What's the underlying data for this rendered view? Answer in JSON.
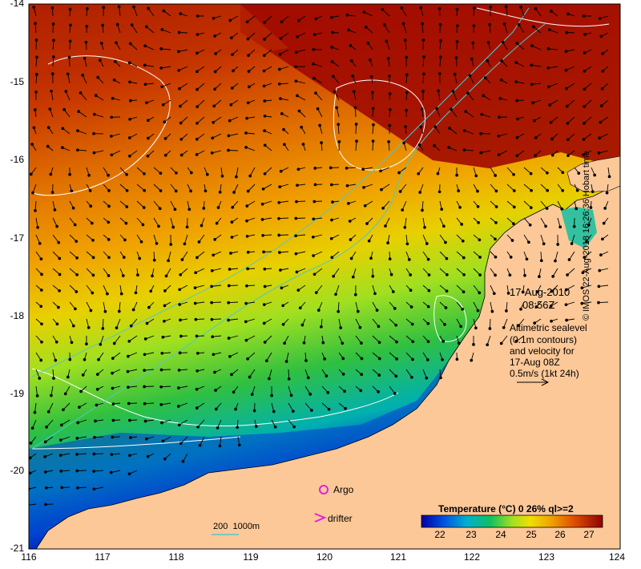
{
  "map": {
    "lon_ticks": [
      "116",
      "117",
      "118",
      "119",
      "120",
      "121",
      "122",
      "123",
      "124"
    ],
    "lat_ticks": [
      "-14",
      "-15",
      "-16",
      "-17",
      "-18",
      "-19",
      "-20",
      "-21"
    ]
  },
  "annotation": {
    "date": "17-Aug-2010",
    "time": "08:56Z",
    "altimetry_lines": [
      "Altimetric sealevel",
      "(0.1m contours)",
      "and velocity for",
      "17-Aug 08Z",
      "0.5m/s (1kt 24h)"
    ]
  },
  "legend": {
    "argo_label": "Argo",
    "drifter_label": "drifter",
    "depth_label": "200  1000m",
    "argo_color": "#e020e0",
    "drifter_color": "#e020e0",
    "depth_color": "#50c8c8"
  },
  "colorbar": {
    "title": "Temperature (°C) 0 26% ql>=2",
    "ticks": [
      "22",
      "23",
      "24",
      "25",
      "26",
      "27"
    ]
  },
  "credit": "© IMOS 22-Aug-2018 16:26:36 Hobart time"
}
